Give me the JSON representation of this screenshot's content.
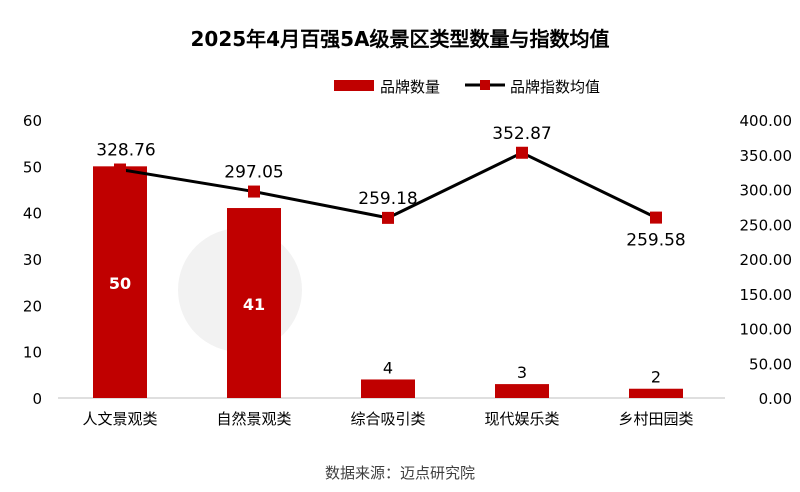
{
  "chart_data": {
    "type": "bar+line",
    "title": "2025年4月百强5A级景区类型数量与指数均值",
    "source": "数据来源：迈点研究院",
    "watermark": "迈点研究院 MEADIN ACADEMY",
    "categories": [
      "人文景观类",
      "自然景观类",
      "综合吸引类",
      "现代娱乐类",
      "乡村田园类"
    ],
    "series": [
      {
        "name": "品牌数量",
        "type": "bar",
        "axis": "left",
        "color": "#C00000",
        "values": [
          50,
          41,
          4,
          3,
          2
        ],
        "labels": [
          "50",
          "41",
          "4",
          "3",
          "2"
        ]
      },
      {
        "name": "品牌指数均值",
        "type": "line",
        "axis": "right",
        "color": "#000000",
        "marker_color": "#C00000",
        "values": [
          328.76,
          297.05,
          259.18,
          352.87,
          259.58
        ],
        "labels": [
          "328.76",
          "297.05",
          "259.18",
          "352.87",
          "259.58"
        ]
      }
    ],
    "left_axis": {
      "range": [
        0,
        60
      ],
      "ticks": [
        "0",
        "10",
        "20",
        "30",
        "40",
        "50",
        "60"
      ]
    },
    "right_axis": {
      "range": [
        0,
        400
      ],
      "ticks": [
        "0.00",
        "50.00",
        "100.00",
        "150.00",
        "200.00",
        "250.00",
        "300.00",
        "350.00",
        "400.00"
      ]
    },
    "grid": false,
    "legend_position": "top-right"
  }
}
